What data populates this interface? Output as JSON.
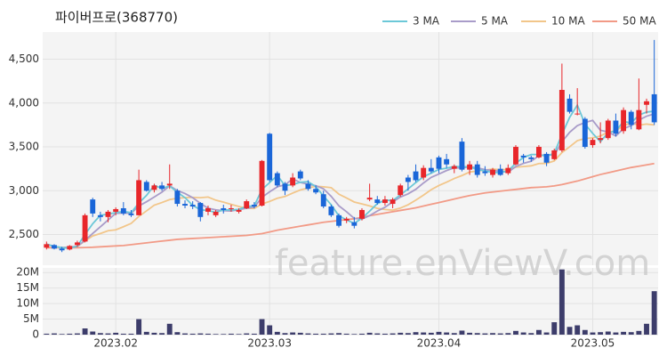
{
  "chart_data": {
    "type": "candlestick",
    "title": "파이버프로(368770)",
    "watermark": "feature.enViewV.com",
    "categories": [
      null,
      null,
      null,
      null,
      null,
      null,
      null,
      null,
      null,
      "2023.02",
      null,
      null,
      null,
      null,
      null,
      null,
      null,
      null,
      null,
      null,
      null,
      null,
      null,
      null,
      null,
      null,
      null,
      null,
      null,
      "2023.03",
      null,
      null,
      null,
      null,
      null,
      null,
      null,
      null,
      null,
      null,
      null,
      null,
      null,
      null,
      null,
      null,
      null,
      null,
      null,
      null,
      null,
      "2023.04",
      null,
      null,
      null,
      null,
      null,
      null,
      null,
      null,
      null,
      null,
      null,
      null,
      null,
      null,
      null,
      null,
      null,
      null,
      null,
      "2023.05",
      null,
      null,
      null,
      null,
      null,
      null,
      null,
      null
    ],
    "open": [
      2350,
      2380,
      2340,
      2330,
      2380,
      2420,
      2900,
      2720,
      2700,
      2760,
      2800,
      2740,
      2720,
      3100,
      3010,
      3060,
      3060,
      3000,
      2850,
      2840,
      2860,
      2760,
      2720,
      2800,
      2790,
      2760,
      2800,
      2840,
      2830,
      3650,
      3200,
      3080,
      3060,
      3220,
      3080,
      3020,
      2960,
      2820,
      2720,
      2660,
      2640,
      2680,
      2900,
      2900,
      2860,
      2850,
      2950,
      3150,
      3220,
      3150,
      3260,
      3380,
      3360,
      3250,
      3560,
      3240,
      3300,
      3220,
      3180,
      3250,
      3200,
      3300,
      3400,
      3380,
      3380,
      3420,
      3360,
      3460,
      4050,
      3880,
      3820,
      3520,
      3580,
      3600,
      3800,
      3680,
      3900,
      3700,
      3980,
      4100
    ],
    "high": [
      2420,
      2390,
      2360,
      2380,
      2430,
      2740,
      2920,
      2760,
      2780,
      2810,
      2870,
      2780,
      3240,
      3120,
      3080,
      3100,
      3300,
      3020,
      2890,
      2880,
      2870,
      2830,
      2780,
      2840,
      2840,
      2800,
      2900,
      2870,
      3350,
      3660,
      3220,
      3100,
      3200,
      3240,
      3120,
      3060,
      3000,
      2840,
      2740,
      2700,
      2700,
      2800,
      3080,
      2940,
      2940,
      2920,
      3080,
      3180,
      3300,
      3290,
      3360,
      3400,
      3420,
      3300,
      3600,
      3340,
      3340,
      3280,
      3260,
      3300,
      3300,
      3520,
      3420,
      3400,
      3520,
      3440,
      3480,
      4450,
      4100,
      4170,
      3840,
      3600,
      3780,
      3820,
      3880,
      3950,
      3920,
      4280,
      4050,
      4720
    ],
    "low": [
      2330,
      2330,
      2300,
      2320,
      2360,
      2410,
      2700,
      2650,
      2640,
      2720,
      2720,
      2700,
      2720,
      2990,
      2980,
      3000,
      3020,
      2820,
      2800,
      2790,
      2650,
      2720,
      2700,
      2740,
      2760,
      2740,
      2790,
      2800,
      2820,
      3100,
      3040,
      2950,
      3040,
      3120,
      3000,
      2960,
      2800,
      2700,
      2580,
      2630,
      2570,
      2660,
      2880,
      2840,
      2830,
      2800,
      2930,
      3000,
      3100,
      3120,
      3200,
      3200,
      3260,
      3200,
      3220,
      3180,
      3150,
      3170,
      3150,
      3170,
      3180,
      3290,
      3320,
      3330,
      3370,
      3280,
      3350,
      3440,
      3880,
      3860,
      3480,
      3490,
      3540,
      3580,
      3620,
      3650,
      3700,
      3690,
      3880,
      3750
    ],
    "close": [
      2390,
      2340,
      2320,
      2370,
      2410,
      2720,
      2740,
      2700,
      2760,
      2790,
      2740,
      2720,
      3120,
      3000,
      3060,
      3020,
      3080,
      2850,
      2830,
      2820,
      2700,
      2800,
      2760,
      2780,
      2800,
      2780,
      2880,
      2820,
      3340,
      3120,
      3060,
      3000,
      3150,
      3140,
      3020,
      2980,
      2820,
      2720,
      2600,
      2680,
      2600,
      2780,
      2920,
      2860,
      2900,
      2900,
      3060,
      3100,
      3120,
      3260,
      3220,
      3250,
      3300,
      3280,
      3240,
      3300,
      3180,
      3200,
      3240,
      3180,
      3260,
      3500,
      3380,
      3360,
      3500,
      3320,
      3460,
      4150,
      3900,
      3880,
      3500,
      3580,
      3600,
      3800,
      3650,
      3920,
      3750,
      3920,
      4020,
      3780
    ],
    "up_color": "#e8262a",
    "down_color": "#1a66d8",
    "series": [
      {
        "name": "3 MA",
        "color": "#6cc8d8",
        "values": [
          2390,
          2365,
          2350,
          2343,
          2367,
          2500,
          2623,
          2720,
          2733,
          2750,
          2763,
          2750,
          2860,
          2947,
          3060,
          3027,
          3053,
          2983,
          2920,
          2833,
          2783,
          2773,
          2753,
          2780,
          2780,
          2787,
          2820,
          2827,
          3013,
          3093,
          3173,
          3060,
          3070,
          3097,
          3103,
          3047,
          2940,
          2840,
          2713,
          2667,
          2627,
          2687,
          2767,
          2853,
          2893,
          2887,
          2953,
          3020,
          3093,
          3160,
          3200,
          3243,
          3257,
          3277,
          3273,
          3273,
          3240,
          3227,
          3207,
          3207,
          3227,
          3313,
          3380,
          3413,
          3413,
          3393,
          3427,
          3643,
          3837,
          3977,
          3760,
          3653,
          3560,
          3660,
          3683,
          3790,
          3773,
          3863,
          3897,
          3907
        ]
      },
      {
        "name": "5 MA",
        "color": "#a99cc9",
        "values": [
          2390,
          2365,
          2350,
          2355,
          2366,
          2432,
          2512,
          2588,
          2666,
          2742,
          2746,
          2742,
          2826,
          2874,
          2928,
          2984,
          3056,
          3002,
          2968,
          2920,
          2856,
          2800,
          2782,
          2772,
          2768,
          2784,
          2800,
          2812,
          2924,
          2988,
          3044,
          3068,
          3134,
          3094,
          3074,
          3058,
          3022,
          2936,
          2828,
          2760,
          2684,
          2676,
          2716,
          2768,
          2812,
          2872,
          2928,
          2964,
          3016,
          3088,
          3152,
          3190,
          3230,
          3262,
          3258,
          3274,
          3260,
          3240,
          3232,
          3220,
          3212,
          3276,
          3312,
          3336,
          3400,
          3412,
          3404,
          3558,
          3666,
          3742,
          3778,
          3802,
          3690,
          3670,
          3624,
          3708,
          3742,
          3806,
          3850,
          3876
        ]
      },
      {
        "name": "10 MA",
        "color": "#f2c68a",
        "values": [
          2390,
          2365,
          2350,
          2355,
          2366,
          2427,
          2484,
          2512,
          2543,
          2554,
          2589,
          2627,
          2707,
          2770,
          2835,
          2865,
          2899,
          2914,
          2921,
          2924,
          2920,
          2928,
          2892,
          2870,
          2844,
          2820,
          2800,
          2797,
          2848,
          2878,
          2914,
          2934,
          2973,
          3009,
          3031,
          3051,
          3045,
          3035,
          2961,
          2917,
          2871,
          2849,
          2826,
          2798,
          2786,
          2778,
          2802,
          2840,
          2892,
          2950,
          3012,
          3059,
          3097,
          3139,
          3173,
          3213,
          3225,
          3235,
          3247,
          3239,
          3243,
          3268,
          3276,
          3284,
          3310,
          3312,
          3340,
          3435,
          3501,
          3571,
          3595,
          3603,
          3624,
          3668,
          3683,
          3743,
          3772,
          3748,
          3760,
          3750
        ]
      },
      {
        "name": "50 MA",
        "color": "#f29a86",
        "values": [
          2350,
          2350,
          2350,
          2350,
          2350,
          2352,
          2355,
          2360,
          2365,
          2370,
          2375,
          2385,
          2395,
          2405,
          2415,
          2425,
          2435,
          2445,
          2450,
          2455,
          2460,
          2465,
          2470,
          2475,
          2480,
          2485,
          2490,
          2500,
          2510,
          2530,
          2550,
          2565,
          2580,
          2595,
          2610,
          2625,
          2640,
          2650,
          2660,
          2670,
          2680,
          2695,
          2715,
          2730,
          2745,
          2760,
          2775,
          2790,
          2805,
          2825,
          2845,
          2865,
          2885,
          2905,
          2925,
          2945,
          2960,
          2975,
          2985,
          2995,
          3005,
          3015,
          3025,
          3035,
          3040,
          3045,
          3055,
          3070,
          3090,
          3110,
          3135,
          3160,
          3185,
          3205,
          3225,
          3245,
          3265,
          3280,
          3295,
          3310
        ]
      }
    ],
    "ylim": [
      2150,
      4810
    ],
    "yticks": [
      {
        "value": 2500,
        "label": "2,500"
      },
      {
        "value": 3000,
        "label": "3,000"
      },
      {
        "value": 3500,
        "label": "3,500"
      },
      {
        "value": 4000,
        "label": "4,000"
      },
      {
        "value": 4500,
        "label": "4,500"
      }
    ],
    "volume": [
      300000,
      400000,
      200000,
      300000,
      400000,
      2000000,
      1000000,
      500000,
      400000,
      600000,
      300000,
      300000,
      5000000,
      900000,
      600000,
      500000,
      3500000,
      800000,
      400000,
      300000,
      400000,
      300000,
      200000,
      200000,
      300000,
      200000,
      400000,
      300000,
      5000000,
      3000000,
      900000,
      500000,
      700000,
      600000,
      400000,
      300000,
      300000,
      400000,
      500000,
      300000,
      200000,
      300000,
      600000,
      400000,
      300000,
      400000,
      600000,
      500000,
      800000,
      700000,
      600000,
      900000,
      700000,
      500000,
      1300000,
      600000,
      500000,
      400000,
      500000,
      400000,
      500000,
      1200000,
      700000,
      500000,
      1500000,
      700000,
      4000000,
      21000000,
      2500000,
      3000000,
      1500000,
      700000,
      800000,
      1000000,
      700000,
      900000,
      800000,
      1200000,
      3500000,
      14000000
    ],
    "volume_color": "#3d3d6b",
    "volume_ylim": [
      0,
      21500000
    ],
    "volume_yticks": [
      0,
      {
        "value": 5000000,
        "label": "5M"
      },
      {
        "value": 10000000,
        "label": "10M"
      },
      {
        "value": 15000000,
        "label": "15M"
      },
      {
        "value": 20000000,
        "label": "20M"
      }
    ],
    "grid": true
  }
}
